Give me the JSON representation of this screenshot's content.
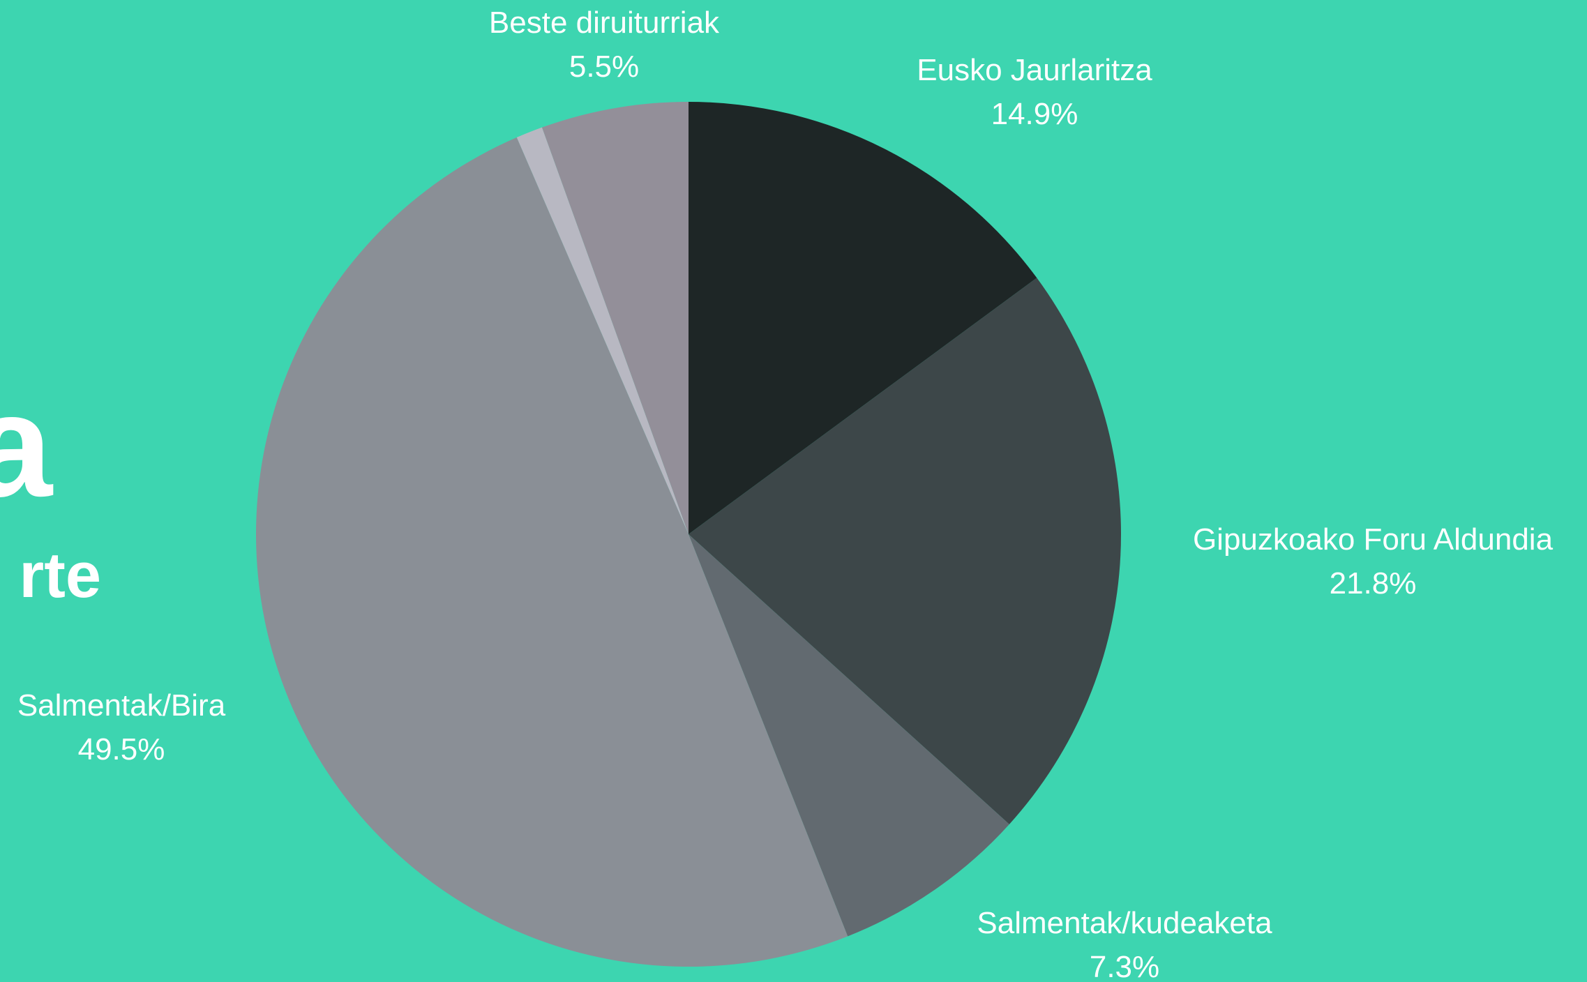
{
  "chart_data": {
    "type": "pie",
    "title": "a",
    "subtitle": "rte",
    "categories": [
      "Eusko Jaurlaritza",
      "Gipuzkoako Foru Aldundia",
      "Salmentak/kudeaketa",
      "Salmentak/Bira",
      null,
      "Beste diruiturriak"
    ],
    "values": [
      14.9,
      21.8,
      7.3,
      49.5,
      1.0,
      5.5
    ],
    "value_labels": [
      "14.9%",
      "21.8%",
      "7.3%",
      "49.5%",
      null,
      "5.5%"
    ],
    "colors": [
      "#1e2626",
      "#3d4749",
      "#626a70",
      "#8a8f96",
      "#b8b8c2",
      "#938f99"
    ]
  }
}
